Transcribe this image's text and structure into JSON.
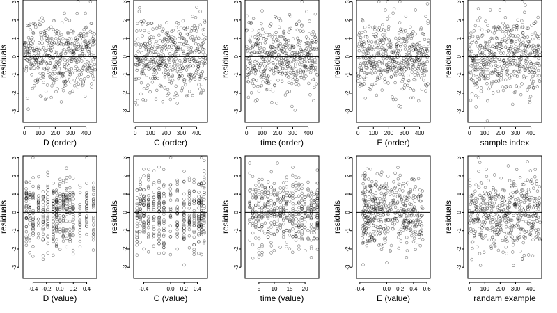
{
  "chart_data": [
    {
      "type": "scatter",
      "xlabel": "D (order)",
      "ylabel": "residuals",
      "xticks": [
        0,
        100,
        200,
        300,
        400
      ],
      "xlim": [
        -10,
        470
      ],
      "ylim": [
        -3.6,
        3.1
      ],
      "yticks": [
        -3,
        -2,
        -1,
        0,
        1,
        2,
        3
      ],
      "mode": "order",
      "seed": 11
    },
    {
      "type": "scatter",
      "xlabel": "C (order)",
      "ylabel": "residuals",
      "xticks": [
        0,
        100,
        200,
        300,
        400
      ],
      "xlim": [
        -10,
        470
      ],
      "ylim": [
        -3.6,
        3.1
      ],
      "yticks": [
        -3,
        -2,
        -1,
        0,
        1,
        2,
        3
      ],
      "mode": "order",
      "seed": 12
    },
    {
      "type": "scatter",
      "xlabel": "time (order)",
      "ylabel": "residuals",
      "xticks": [
        0,
        100,
        200,
        300,
        400
      ],
      "xlim": [
        -10,
        470
      ],
      "ylim": [
        -3.6,
        3.1
      ],
      "yticks": [
        -3,
        -2,
        -1,
        0,
        1,
        2,
        3
      ],
      "mode": "order",
      "seed": 13
    },
    {
      "type": "scatter",
      "xlabel": "E (order)",
      "ylabel": "residuals",
      "xticks": [
        0,
        100,
        200,
        300,
        400
      ],
      "xlim": [
        -10,
        470
      ],
      "ylim": [
        -3.6,
        3.1
      ],
      "yticks": [
        -3,
        -2,
        -1,
        0,
        1,
        2,
        3
      ],
      "mode": "order",
      "seed": 14
    },
    {
      "type": "scatter",
      "xlabel": "sample index",
      "ylabel": "residuals",
      "xticks": [
        0,
        100,
        200,
        300,
        400
      ],
      "xlim": [
        -10,
        470
      ],
      "ylim": [
        -3.6,
        3.1
      ],
      "yticks": [
        -3,
        -2,
        -1,
        0,
        1,
        2,
        3
      ],
      "mode": "order",
      "seed": 15
    },
    {
      "type": "scatter",
      "xlabel": "D (value)",
      "ylabel": "residuals",
      "xticks": [
        -0.4,
        -0.2,
        0.0,
        0.2,
        0.4
      ],
      "xtick_labels": [
        "-0.4",
        "-0.2",
        "0.0",
        "0.2",
        "0.4"
      ],
      "xlim": [
        -0.55,
        0.55
      ],
      "ylim": [
        -3.6,
        3.1
      ],
      "yticks": [
        -3,
        -2,
        -1,
        0,
        1,
        2,
        3
      ],
      "mode": "discrete",
      "levels": [
        -0.5,
        -0.45,
        -0.4,
        -0.32,
        -0.25,
        -0.18,
        -0.1,
        -0.05,
        0.0,
        0.05,
        0.1,
        0.15,
        0.2,
        0.3,
        0.4,
        0.5
      ],
      "seed": 21
    },
    {
      "type": "scatter",
      "xlabel": "C (value)",
      "ylabel": "residuals",
      "xticks": [
        -0.4,
        0.0,
        0.2,
        0.4
      ],
      "xtick_labels": [
        "-0.4",
        "0.0",
        "0.2",
        "0.4"
      ],
      "xlim": [
        -0.55,
        0.55
      ],
      "ylim": [
        -3.6,
        3.1
      ],
      "yticks": [
        -3,
        -2,
        -1,
        0,
        1,
        2,
        3
      ],
      "mode": "discrete",
      "levels": [
        -0.5,
        -0.45,
        -0.4,
        -0.33,
        -0.25,
        -0.17,
        -0.1,
        0.0,
        0.1,
        0.2,
        0.28,
        0.35,
        0.42,
        0.46,
        0.5
      ],
      "seed": 22
    },
    {
      "type": "scatter",
      "xlabel": "time (value)",
      "ylabel": "residuals",
      "xticks": [
        5,
        10,
        15,
        20
      ],
      "xtick_labels": [
        "5",
        "10",
        "15",
        "20"
      ],
      "xlim": [
        0.5,
        24.5
      ],
      "ylim": [
        -3.6,
        3.1
      ],
      "yticks": [
        -3,
        -2,
        -1,
        0,
        1,
        2,
        3
      ],
      "mode": "discrete",
      "levels": [
        2,
        3,
        4,
        5,
        6,
        7,
        8,
        9,
        10,
        11,
        12,
        13,
        14,
        15,
        16,
        17,
        18,
        19,
        20,
        21,
        22,
        23,
        24
      ],
      "seed": 23
    },
    {
      "type": "scatter",
      "xlabel": "E (value)",
      "ylabel": "residuals",
      "xticks": [
        -0.4,
        0.0,
        0.2,
        0.4,
        0.6
      ],
      "xtick_labels": [
        "-0.4",
        "0.0",
        "0.2",
        "0.4",
        "0.6"
      ],
      "xlim": [
        -0.45,
        0.65
      ],
      "ylim": [
        -3.6,
        3.1
      ],
      "yticks": [
        -3,
        -2,
        -1,
        0,
        1,
        2,
        3
      ],
      "mode": "continuous",
      "seed": 24
    },
    {
      "type": "scatter",
      "xlabel": "randam example",
      "ylabel": "residuals",
      "xticks": [
        0,
        100,
        200,
        300,
        400
      ],
      "xlim": [
        -10,
        470
      ],
      "ylim": [
        -3.6,
        3.1
      ],
      "yticks": [
        -3,
        -2,
        -1,
        0,
        1,
        2,
        3
      ],
      "mode": "order",
      "seed": 25
    }
  ]
}
